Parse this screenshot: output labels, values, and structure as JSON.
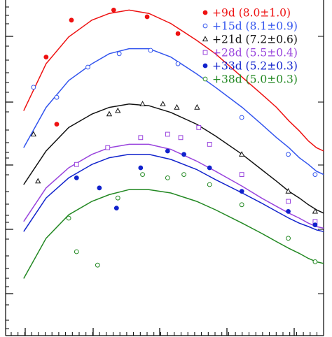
{
  "chart_data": {
    "type": "scatter",
    "title": "",
    "xlabel": "",
    "ylabel": "",
    "xlim": [
      0,
      100
    ],
    "ylim": [
      0,
      100
    ],
    "grid": false,
    "legend_position": "top-right",
    "series": [
      {
        "name": "+9d",
        "legend": "(8.0±1.0)",
        "color": "#ee1111",
        "marker": "filled-circle",
        "points": [
          [
            0.8,
            83
          ],
          [
            1.6,
            94
          ],
          [
            3.8,
            97
          ],
          [
            6.8,
            95
          ],
          [
            11.2,
            90
          ],
          [
            1.1,
            63
          ]
        ],
        "curve": [
          [
            0.3,
            67
          ],
          [
            0.8,
            81
          ],
          [
            1.5,
            89
          ],
          [
            2.5,
            94
          ],
          [
            3.5,
            96
          ],
          [
            5,
            97
          ],
          [
            7,
            96
          ],
          [
            10,
            93
          ],
          [
            15,
            88
          ],
          [
            20,
            84
          ],
          [
            30,
            77
          ],
          [
            40,
            72
          ],
          [
            50,
            68
          ],
          [
            60,
            64
          ],
          [
            70,
            61
          ],
          [
            80,
            58
          ],
          [
            90,
            56
          ],
          [
            100,
            55
          ]
        ]
      },
      {
        "name": "+15d",
        "legend": "(8.1±0.9)",
        "color": "#3355ee",
        "marker": "open-circle",
        "points": [
          [
            0.5,
            74
          ],
          [
            1.1,
            71
          ],
          [
            2.3,
            80
          ],
          [
            4.2,
            84
          ],
          [
            7.2,
            85
          ],
          [
            11.2,
            81
          ],
          [
            29.8,
            65
          ],
          [
            59.5,
            54
          ],
          [
            88.3,
            48
          ]
        ],
        "curve": [
          [
            0.3,
            56
          ],
          [
            0.8,
            68
          ],
          [
            1.5,
            76
          ],
          [
            2.5,
            81
          ],
          [
            3.5,
            84
          ],
          [
            5,
            85.5
          ],
          [
            7,
            85.5
          ],
          [
            10,
            83
          ],
          [
            15,
            78
          ],
          [
            20,
            74
          ],
          [
            30,
            68
          ],
          [
            40,
            63
          ],
          [
            50,
            59
          ],
          [
            60,
            56
          ],
          [
            70,
            53
          ],
          [
            80,
            51
          ],
          [
            90,
            49
          ],
          [
            100,
            48
          ]
        ]
      },
      {
        "name": "+21d",
        "legend": "(7.2±0.6)",
        "color": "#111111",
        "marker": "open-triangle",
        "points": [
          [
            0.5,
            60
          ],
          [
            0.6,
            46
          ],
          [
            3.5,
            66
          ],
          [
            4.1,
            67
          ],
          [
            6.3,
            69
          ],
          [
            8.8,
            69
          ],
          [
            11.0,
            68
          ],
          [
            15.1,
            68
          ],
          [
            29.8,
            54
          ],
          [
            59.5,
            43
          ],
          [
            88.3,
            37
          ]
        ],
        "curve": [
          [
            0.3,
            45
          ],
          [
            0.8,
            55
          ],
          [
            1.5,
            62
          ],
          [
            2.5,
            66
          ],
          [
            3.5,
            68
          ],
          [
            5,
            69
          ],
          [
            7,
            68.5
          ],
          [
            10,
            66.5
          ],
          [
            15,
            63
          ],
          [
            20,
            59.5
          ],
          [
            30,
            54
          ],
          [
            40,
            49.5
          ],
          [
            50,
            46
          ],
          [
            60,
            43
          ],
          [
            70,
            41
          ],
          [
            80,
            39
          ],
          [
            90,
            37.5
          ],
          [
            100,
            36.5
          ]
        ]
      },
      {
        "name": "+28d",
        "legend": "(5.5±0.4)",
        "color": "#9944dd",
        "marker": "open-square",
        "points": [
          [
            1.8,
            51
          ],
          [
            3.4,
            56
          ],
          [
            6.1,
            59
          ],
          [
            9.5,
            60
          ],
          [
            11.7,
            59
          ],
          [
            15.5,
            62
          ],
          [
            18.3,
            57
          ],
          [
            29.8,
            48
          ],
          [
            59.5,
            40
          ],
          [
            88.3,
            34
          ]
        ],
        "curve": [
          [
            0.3,
            34
          ],
          [
            0.8,
            44
          ],
          [
            1.5,
            50
          ],
          [
            2.5,
            54
          ],
          [
            3.5,
            56
          ],
          [
            5,
            57
          ],
          [
            7,
            57
          ],
          [
            10,
            55.5
          ],
          [
            15,
            52
          ],
          [
            20,
            49
          ],
          [
            30,
            44.5
          ],
          [
            40,
            41
          ],
          [
            50,
            38.5
          ],
          [
            60,
            36.5
          ],
          [
            70,
            35
          ],
          [
            80,
            33.5
          ],
          [
            90,
            32.5
          ],
          [
            100,
            32
          ]
        ]
      },
      {
        "name": "+33d",
        "legend": "(5.2±0.3)",
        "color": "#1122cc",
        "marker": "filled-circle",
        "points": [
          [
            1.8,
            47
          ],
          [
            2.9,
            44
          ],
          [
            4.0,
            38
          ],
          [
            6.1,
            50
          ],
          [
            9.5,
            55
          ],
          [
            12.3,
            54
          ],
          [
            18.3,
            50
          ],
          [
            29.8,
            43
          ],
          [
            59.5,
            37
          ],
          [
            88.3,
            33
          ]
        ],
        "curve": [
          [
            0.3,
            31
          ],
          [
            0.8,
            41
          ],
          [
            1.5,
            47
          ],
          [
            2.5,
            51
          ],
          [
            3.5,
            53
          ],
          [
            5,
            54
          ],
          [
            7,
            54
          ],
          [
            10,
            52.5
          ],
          [
            15,
            49.5
          ],
          [
            20,
            46.5
          ],
          [
            30,
            42.5
          ],
          [
            40,
            39.5
          ],
          [
            50,
            37
          ],
          [
            60,
            35
          ],
          [
            70,
            33.5
          ],
          [
            80,
            32.5
          ],
          [
            90,
            31.5
          ],
          [
            100,
            31
          ]
        ]
      },
      {
        "name": "+38d",
        "legend": "(5.0±0.3)",
        "color": "#228822",
        "marker": "open-circle",
        "points": [
          [
            1.5,
            35
          ],
          [
            1.8,
            25
          ],
          [
            2.8,
            21
          ],
          [
            4.1,
            41
          ],
          [
            6.3,
            48
          ],
          [
            9.5,
            47
          ],
          [
            12.3,
            48
          ],
          [
            18.3,
            45
          ],
          [
            29.8,
            39
          ],
          [
            59.5,
            29
          ],
          [
            88.3,
            22
          ]
        ],
        "curve": [
          [
            0.3,
            17
          ],
          [
            0.8,
            29
          ],
          [
            1.5,
            36
          ],
          [
            2.5,
            40
          ],
          [
            3.5,
            42
          ],
          [
            5,
            43.5
          ],
          [
            7,
            43.5
          ],
          [
            10,
            42.5
          ],
          [
            15,
            40
          ],
          [
            20,
            37.5
          ],
          [
            30,
            33.5
          ],
          [
            40,
            30.5
          ],
          [
            50,
            28
          ],
          [
            60,
            26
          ],
          [
            70,
            24.5
          ],
          [
            80,
            23
          ],
          [
            90,
            22
          ],
          [
            100,
            21.5
          ]
        ]
      }
    ]
  }
}
